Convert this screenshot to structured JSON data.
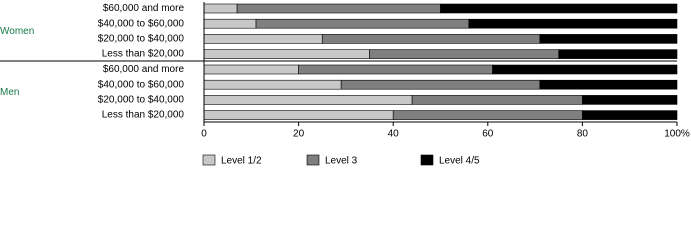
{
  "chart_data": {
    "type": "stacked-bar-horizontal",
    "series": [
      {
        "name": "Level 1/2",
        "color": "#c8c8c8"
      },
      {
        "name": "Level 3",
        "color": "#7f7f7f"
      },
      {
        "name": "Level 4/5",
        "color": "#000000"
      }
    ],
    "groups": [
      {
        "name": "Women",
        "categories": [
          "$60,000 and more",
          "$40,000 to $60,000",
          "$20,000 to $40,000",
          "Less than $20,000"
        ],
        "values": [
          [
            7,
            11,
            25,
            35
          ],
          [
            43,
            45,
            46,
            40
          ],
          [
            50,
            44,
            29,
            25
          ]
        ]
      },
      {
        "name": "Men",
        "categories": [
          "$60,000 and more",
          "$40,000 to $60,000",
          "$20,000 to $40,000",
          "Less than $20,000"
        ],
        "values": [
          [
            20,
            29,
            44,
            40
          ],
          [
            41,
            42,
            36,
            40
          ],
          [
            39,
            29,
            20,
            20
          ]
        ]
      }
    ],
    "xlim": [
      0,
      100
    ],
    "xticks": [
      0,
      20,
      40,
      60,
      80,
      {
        "value": 100,
        "label": "100%"
      }
    ],
    "group_color": "#1a7a4a"
  }
}
